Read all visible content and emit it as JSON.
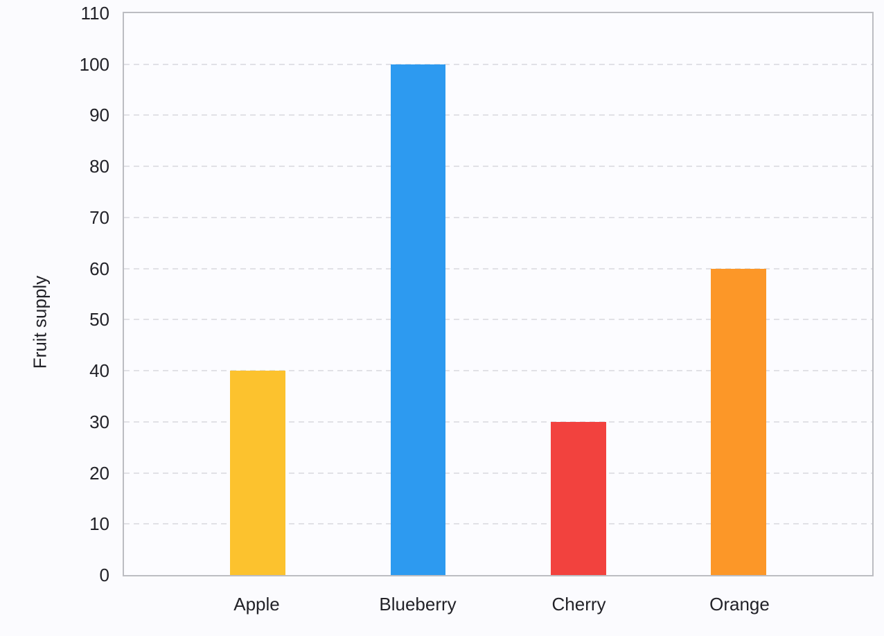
{
  "chart_data": {
    "type": "bar",
    "title": "",
    "xlabel": "",
    "ylabel": "Fruit supply",
    "categories": [
      "Apple",
      "Blueberry",
      "Cherry",
      "Orange"
    ],
    "values": [
      40,
      100,
      30,
      60
    ],
    "bar_colors": [
      "#fcc22e",
      "#2d9af0",
      "#f2423e",
      "#fc9728"
    ],
    "ylim": [
      0,
      110
    ],
    "yticks": [
      0,
      10,
      20,
      30,
      40,
      50,
      60,
      70,
      80,
      90,
      100,
      110
    ],
    "grid": "horizontal-dashed",
    "legend": "none",
    "band_centers_pct": [
      17.85,
      39.3,
      60.75,
      82.15
    ],
    "bar_width_pct": 7.38,
    "palette": {
      "background": "#fbfbfe",
      "plot_background": "#fcfcff",
      "axis_border": "#bcbdc2",
      "gridline": "#e1e1e6",
      "text": "#222228"
    }
  }
}
